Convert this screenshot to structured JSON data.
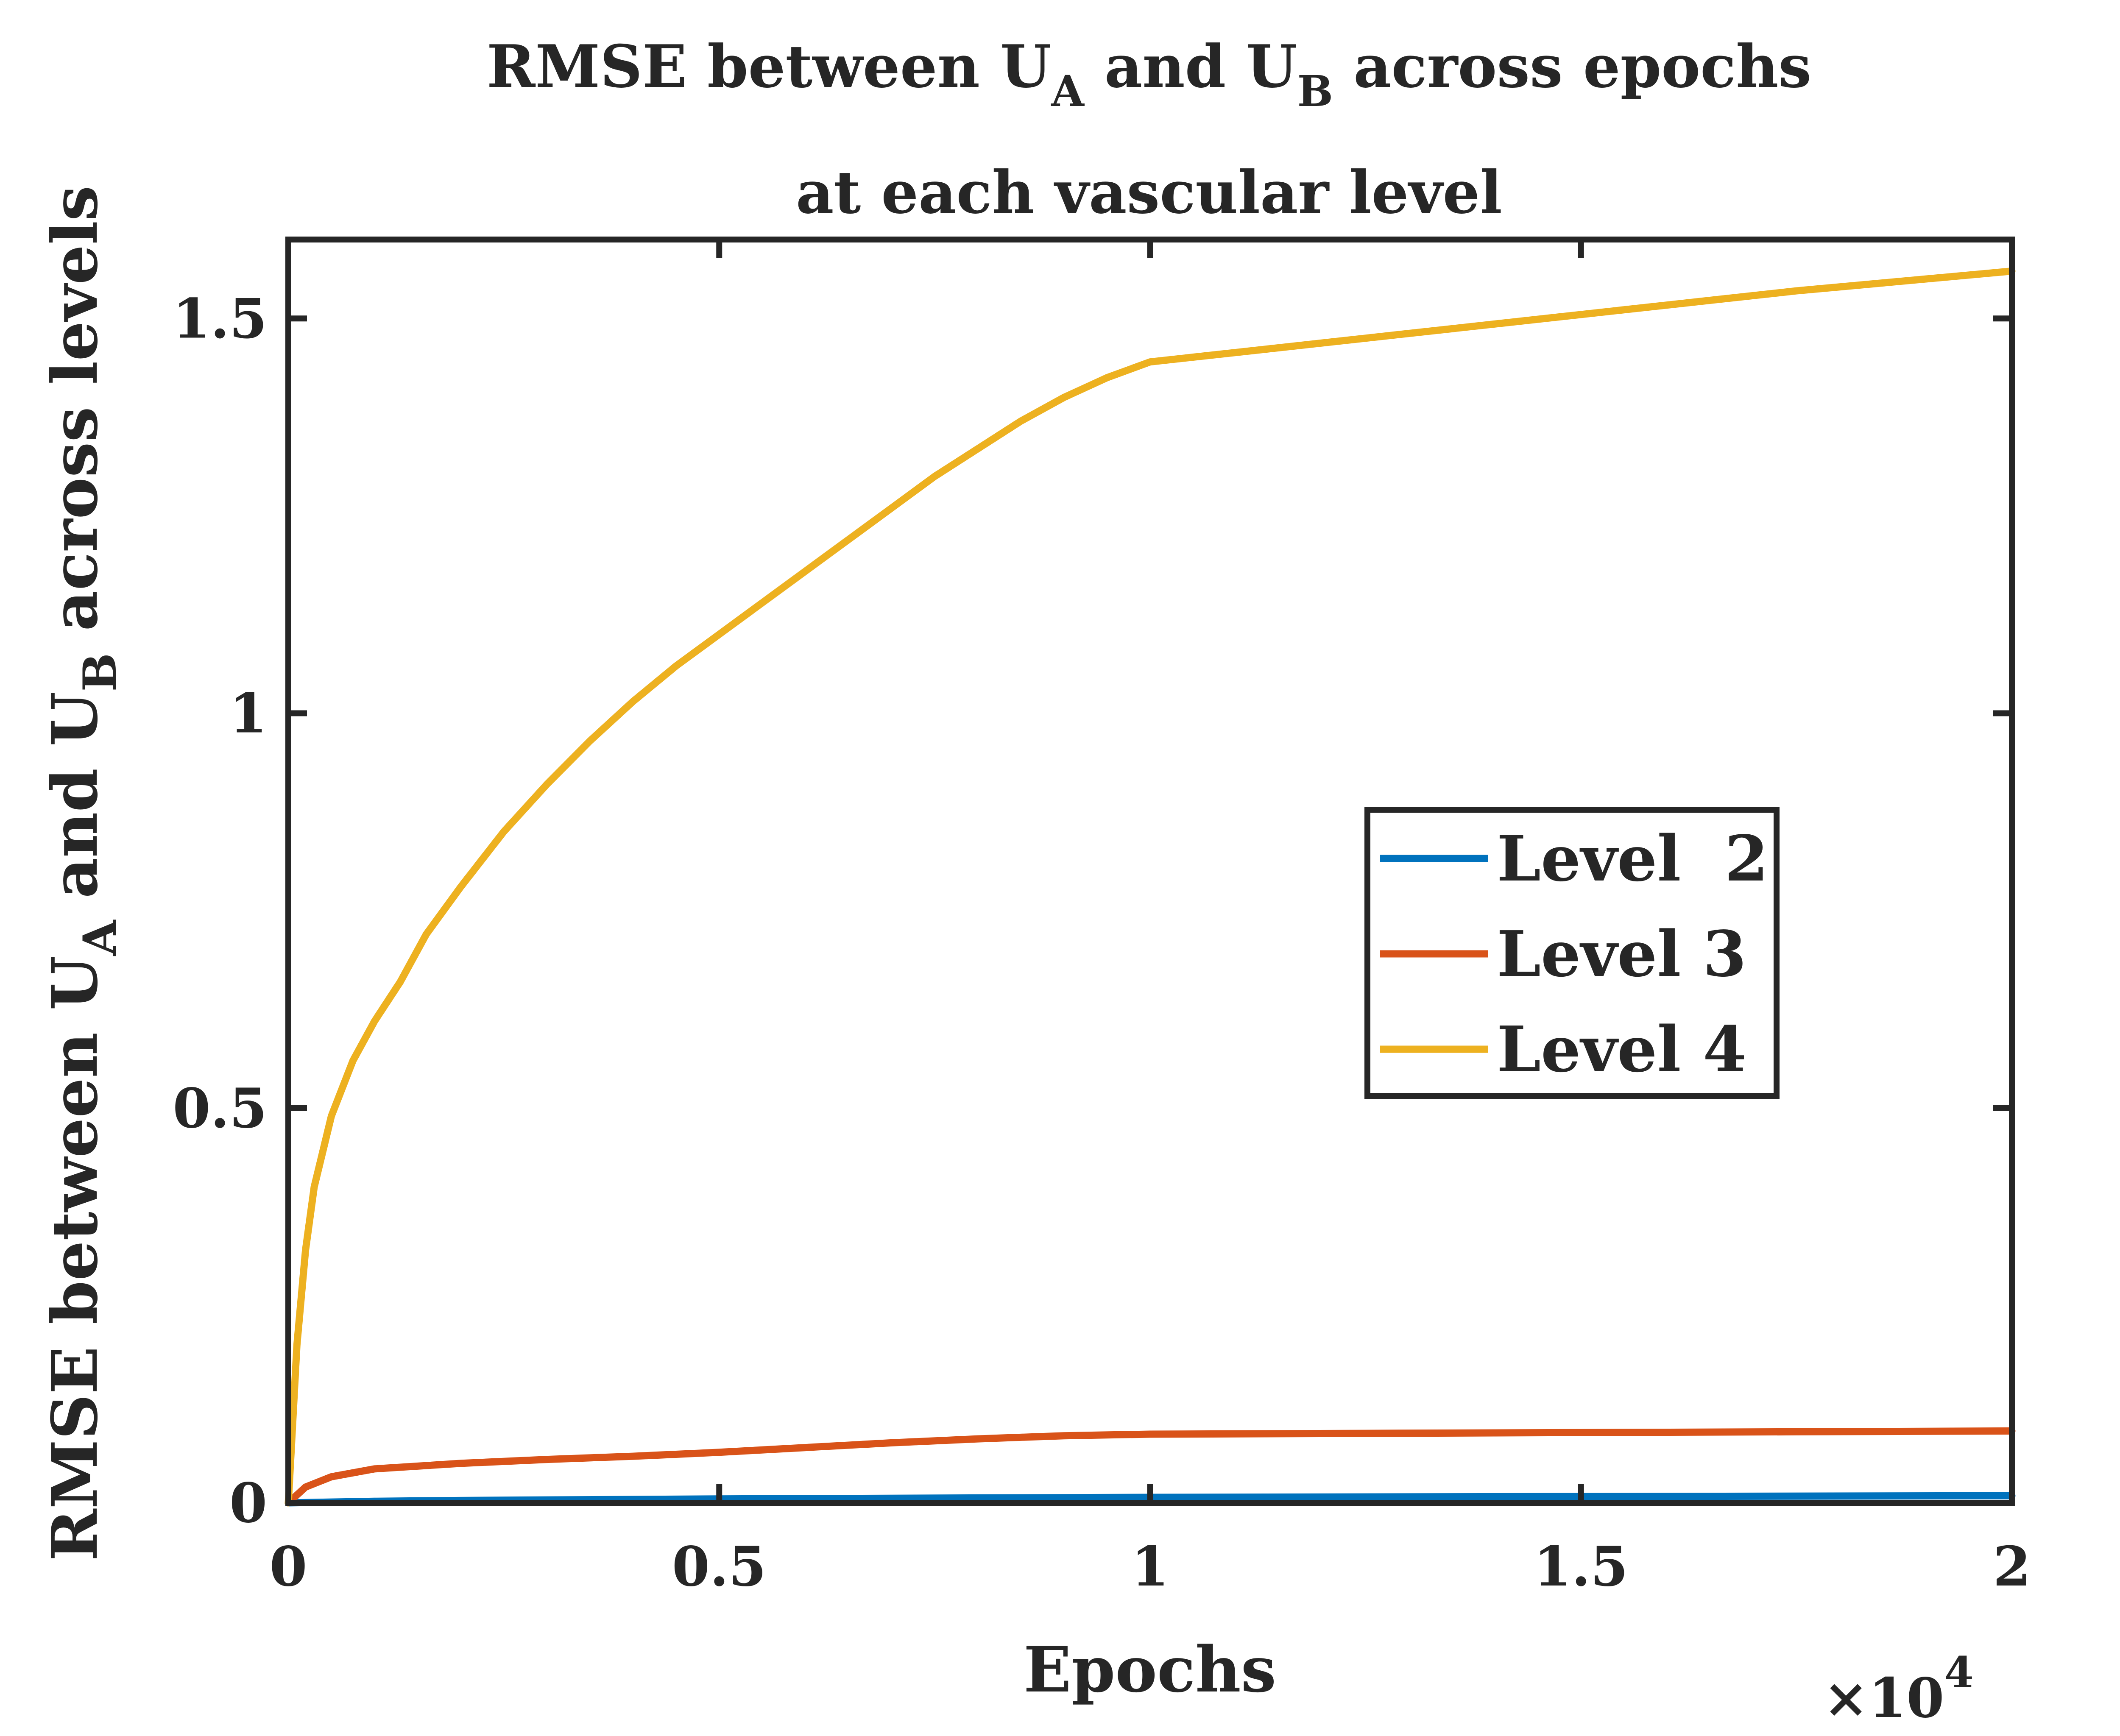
{
  "chart_data": {
    "type": "line",
    "title": {
      "line1": {
        "pre": "RMSE between U",
        "sub1": "A",
        "mid": " and U",
        "sub2": "B",
        "post": " across epochs"
      },
      "line2": "at each vascular level"
    },
    "xlabel": "Epochs",
    "ylabel": {
      "pre": "RMSE between U",
      "sub1": "A",
      "mid": " and U",
      "sub2": "B",
      "post": " across levels"
    },
    "x_multiplier": {
      "base": "×10",
      "exponent": "4"
    },
    "xlim": [
      0,
      20000
    ],
    "ylim": [
      0,
      1.6
    ],
    "xticks": [
      0,
      5000,
      10000,
      15000,
      20000
    ],
    "xtick_labels": [
      "0",
      "0.5",
      "1",
      "1.5",
      "2"
    ],
    "yticks": [
      0,
      0.5,
      1,
      1.5
    ],
    "ytick_labels": [
      "0",
      "0.5",
      "1",
      "1.5"
    ],
    "grid": false,
    "legend_position": "center-right",
    "series": [
      {
        "name": "Level  2",
        "color": "#0072BD",
        "x": [
          0,
          1000,
          2000,
          5000,
          10000,
          15000,
          20000
        ],
        "y": [
          0,
          0.002,
          0.003,
          0.005,
          0.007,
          0.008,
          0.009
        ]
      },
      {
        "name": "Level 3",
        "color": "#D95319",
        "x": [
          0,
          200,
          500,
          1000,
          2000,
          3000,
          4000,
          5000,
          6000,
          7000,
          8000,
          9000,
          10000,
          12500,
          15000,
          17500,
          20000
        ],
        "y": [
          0,
          0.02,
          0.033,
          0.043,
          0.05,
          0.055,
          0.059,
          0.064,
          0.07,
          0.076,
          0.081,
          0.085,
          0.087,
          0.088,
          0.089,
          0.09,
          0.091
        ]
      },
      {
        "name": "Level 4",
        "color": "#EDB120",
        "x": [
          0,
          100,
          200,
          300,
          500,
          750,
          1000,
          1300,
          1600,
          2000,
          2500,
          3000,
          3500,
          4000,
          4500,
          5000,
          5500,
          6000,
          6500,
          7000,
          7500,
          8000,
          8500,
          9000,
          9500,
          10000,
          12500,
          15000,
          17500,
          20000
        ],
        "y": [
          0,
          0.2,
          0.32,
          0.4,
          0.49,
          0.56,
          0.61,
          0.66,
          0.72,
          0.78,
          0.85,
          0.91,
          0.965,
          1.015,
          1.06,
          1.1,
          1.14,
          1.18,
          1.22,
          1.26,
          1.3,
          1.335,
          1.37,
          1.4,
          1.425,
          1.445,
          1.475,
          1.505,
          1.535,
          1.56
        ]
      }
    ]
  }
}
